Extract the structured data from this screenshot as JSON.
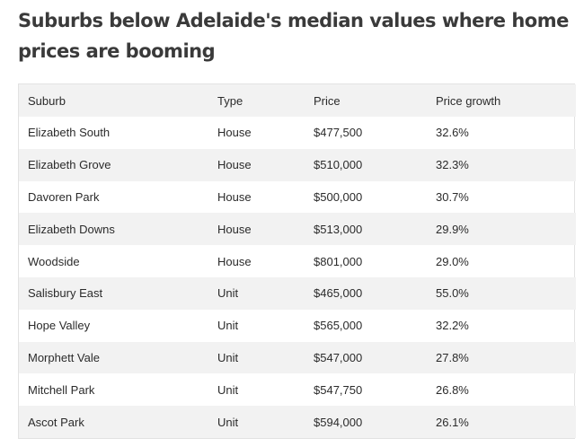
{
  "article": {
    "title": "Suburbs below Adelaide's median values where home prices are booming"
  },
  "table": {
    "headers": [
      "Suburb",
      "Type",
      "Price",
      "Price growth"
    ],
    "rows": [
      [
        "Elizabeth South",
        "House",
        "$477,500",
        "32.6%"
      ],
      [
        "Elizabeth Grove",
        "House",
        "$510,000",
        "32.3%"
      ],
      [
        "Davoren Park",
        "House",
        "$500,000",
        "30.7%"
      ],
      [
        "Elizabeth Downs",
        "House",
        "$513,000",
        "29.9%"
      ],
      [
        "Woodside",
        "House",
        "$801,000",
        "29.0%"
      ],
      [
        "Salisbury East",
        "Unit",
        "$465,000",
        "55.0%"
      ],
      [
        "Hope Valley",
        "Unit",
        "$565,000",
        "32.2%"
      ],
      [
        "Morphett Vale",
        "Unit",
        "$547,000",
        "27.8%"
      ],
      [
        "Mitchell Park",
        "Unit",
        "$547,750",
        "26.8%"
      ],
      [
        "Ascot Park",
        "Unit",
        "$594,000",
        "26.1%"
      ]
    ]
  }
}
